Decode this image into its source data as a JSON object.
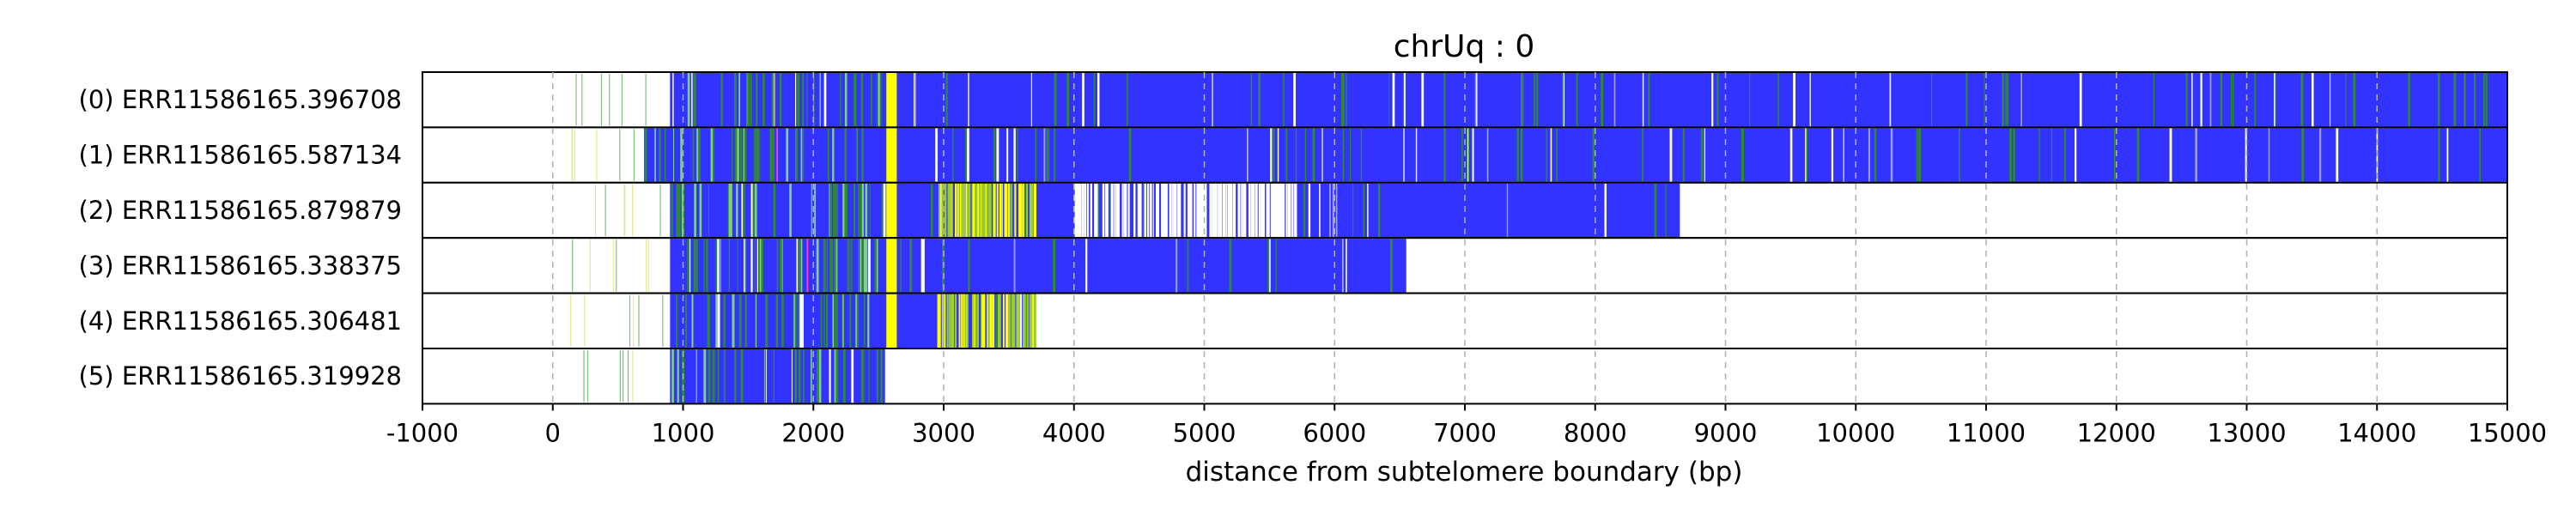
{
  "chart_data": {
    "type": "read-alignment track",
    "title": "chrUq : 0",
    "xlabel": "distance from subtelomere boundary (bp)",
    "xlim": [
      -1000,
      15000
    ],
    "xticks": [
      -1000,
      0,
      1000,
      2000,
      3000,
      4000,
      5000,
      6000,
      7000,
      8000,
      9000,
      10000,
      11000,
      12000,
      13000,
      14000,
      15000
    ],
    "grid": "vertical dashed",
    "colors": {
      "repeat": "#3333ff",
      "alt_green": "#2e8b2e",
      "alt_yellow": "#ffff00",
      "alt_magenta": "#ff44aa",
      "gap": "#ffffff"
    },
    "reads": [
      {
        "label": "(0) ERR11586165.396708",
        "start": 900,
        "end": 15000
      },
      {
        "label": "(1) ERR11586165.587134",
        "start": 700,
        "end": 15000
      },
      {
        "label": "(2) ERR11586165.879879",
        "start": 900,
        "end": 8650
      },
      {
        "label": "(3) ERR11586165.338375",
        "start": 900,
        "end": 6550
      },
      {
        "label": "(4) ERR11586165.306481",
        "start": 900,
        "end": 3700
      },
      {
        "label": "(5) ERR11586165.319928",
        "start": 900,
        "end": 2550
      }
    ]
  }
}
